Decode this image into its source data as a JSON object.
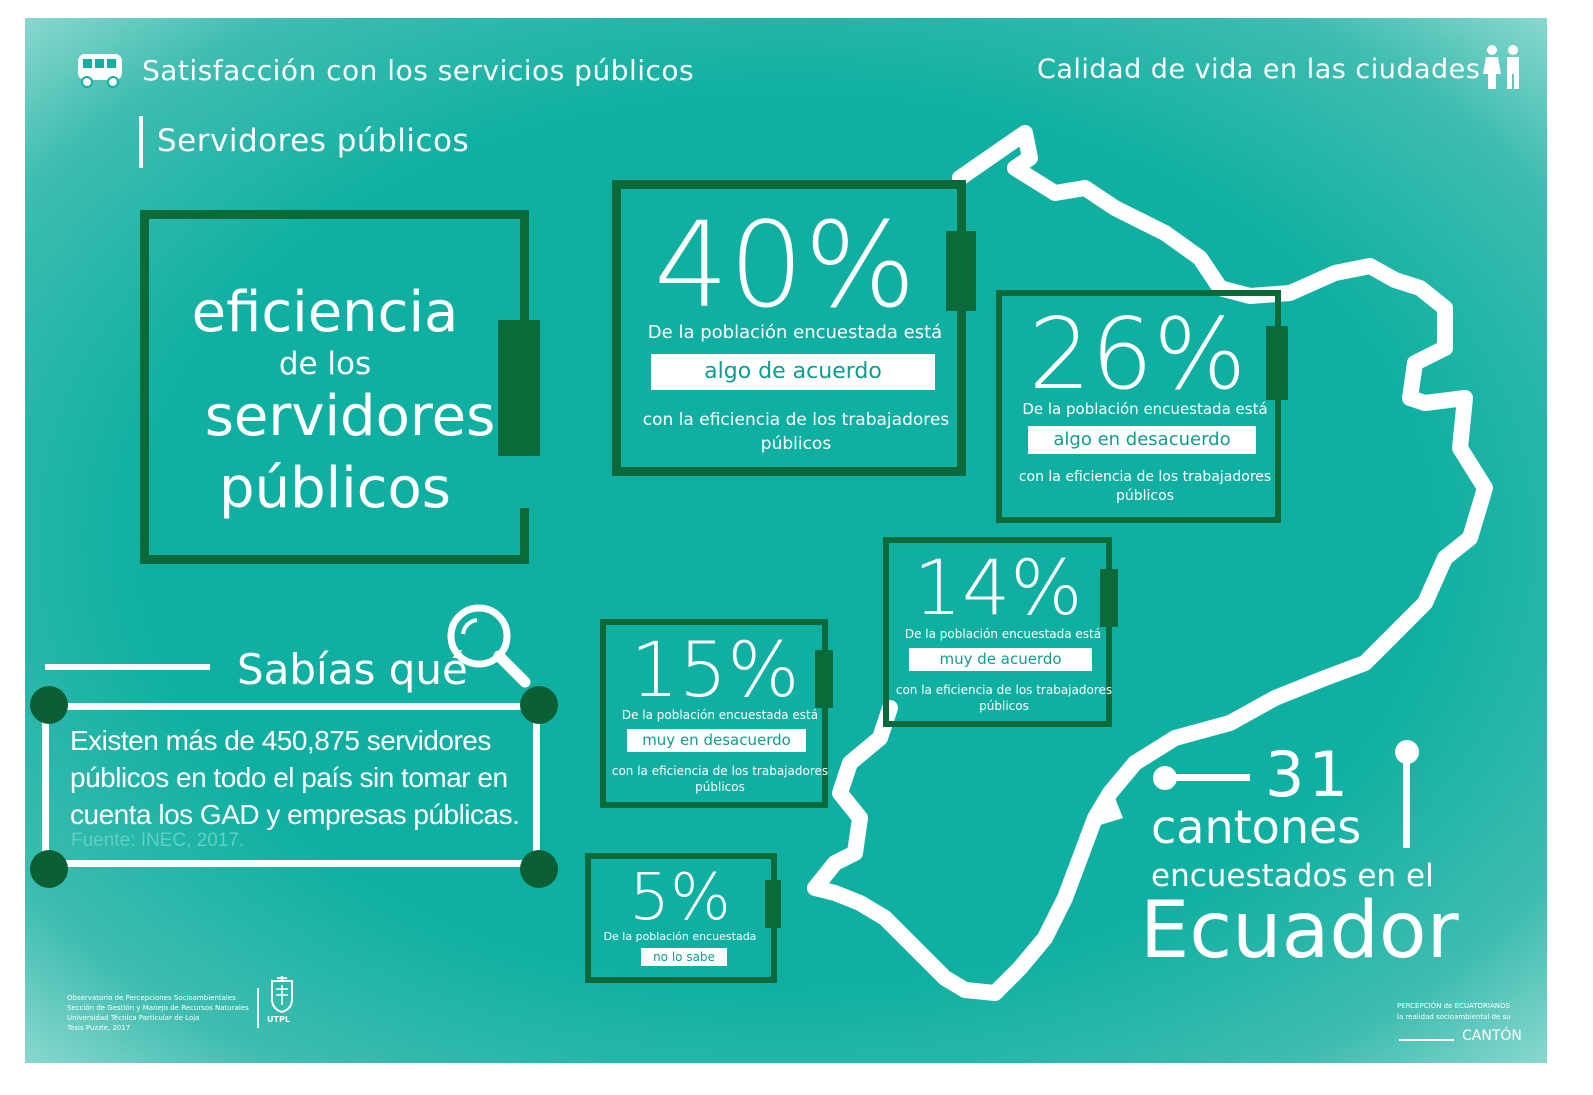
{
  "header": {
    "left_title": "Satisfacción con los servicios públicos",
    "right_title": "Calidad de vida en las ciudades",
    "section_title": "Servidores públicos"
  },
  "main_box": {
    "line1": "eficiencia",
    "line2": "de los",
    "line3": "servidores",
    "line4": "públicos"
  },
  "stats": [
    {
      "percent": "40%",
      "intro": "De la población encuestada está",
      "label": "algo de acuerdo",
      "outro": "con la eficiencia de los trabajadores públicos"
    },
    {
      "percent": "26%",
      "intro": "De la población encuestada está",
      "label": "algo en desacuerdo",
      "outro": "con la eficiencia de los trabajadores públicos"
    },
    {
      "percent": "14%",
      "intro": "De la población encuestada está",
      "label": "muy de acuerdo",
      "outro": "con la eficiencia de los trabajadores públicos"
    },
    {
      "percent": "15%",
      "intro": "De la población encuestada está",
      "label": "muy en desacuerdo",
      "outro": "con la eficiencia de los trabajadores públicos"
    },
    {
      "percent": "5%",
      "intro": "De la población encuestada",
      "label": "no lo sabe",
      "outro": ""
    }
  ],
  "sabias": {
    "title": "Sabías qué",
    "text": "Existen más de 450,875 servidores públicos en todo el país sin tomar en cuenta los GAD y empresas públicas.",
    "source": "Fuente: INEC, 2017."
  },
  "cantones": {
    "number": "31",
    "word": "cantones",
    "line": "encuestados en el",
    "country": "Ecuador"
  },
  "footer": {
    "credits": [
      "Observatorio de Percepciones Socioambientales",
      "Sección de Gestión y Manejo de Recursos Naturales",
      "Universidad Técnica Particular de Loja",
      "Tesis Puzzle, 2017"
    ],
    "logo_text": "UTPL",
    "brand_line1": "PERCEPCIÓN de ECUATORIANOS",
    "brand_line2": "la realidad socioambiental de su",
    "brand_line3": "CANTÓN"
  },
  "colors": {
    "teal": "#0fb0a2",
    "dark_green": "#0b6a3a",
    "white": "#ffffff"
  },
  "icons": [
    "bus-icon",
    "people-icon",
    "magnifier-icon",
    "university-shield-icon"
  ]
}
